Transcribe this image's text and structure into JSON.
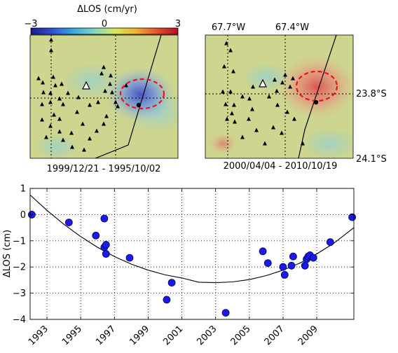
{
  "colorbar": {
    "label": "ΔLOS (cm/yr)",
    "tick_labels": [
      "−3",
      "0",
      "3"
    ],
    "colors": [
      "#1a1a8c",
      "#2f4fd6",
      "#3aa6e0",
      "#7fd6c8",
      "#d8e85a",
      "#f0b030",
      "#e8502a",
      "#b80c20"
    ]
  },
  "map_left": {
    "caption": "1999/12/21 - 1995/10/02",
    "anomaly": "uplift-blue",
    "base_color": "#cdd58e",
    "anomaly_color": "#5a6fd8"
  },
  "map_right": {
    "caption": "2000/04/04 - 2010/10/19",
    "anomaly": "subsidence-red",
    "base_color": "#cdd58e",
    "anomaly_color": "#e06060",
    "lon_labels": [
      "67.7°W",
      "67.4°W"
    ],
    "lat_labels": [
      "23.8°S",
      "24.1°S"
    ]
  },
  "chart_data": {
    "type": "scatter",
    "ylabel": "ΔLOS (cm)",
    "xlabel": "",
    "xlim": [
      1992.0,
      2011.2
    ],
    "ylim": [
      -4,
      1
    ],
    "xticks": [
      1993,
      1995,
      1997,
      1999,
      2001,
      2003,
      2005,
      2007,
      2009
    ],
    "yticks": [
      1,
      0,
      -1,
      -2,
      -3,
      -4
    ],
    "grid": true,
    "series": [
      {
        "kind": "points",
        "color": "#1a1aee",
        "points": [
          [
            1992.1,
            0.0
          ],
          [
            1994.3,
            -0.3
          ],
          [
            1995.9,
            -0.8
          ],
          [
            1996.4,
            -0.15
          ],
          [
            1996.4,
            -1.25
          ],
          [
            1996.5,
            -1.15
          ],
          [
            1996.5,
            -1.5
          ],
          [
            1997.9,
            -1.65
          ],
          [
            2000.1,
            -3.25
          ],
          [
            2000.4,
            -2.6
          ],
          [
            2003.6,
            -3.75
          ],
          [
            2005.8,
            -1.4
          ],
          [
            2006.1,
            -1.85
          ],
          [
            2007.0,
            -2.0
          ],
          [
            2007.1,
            -2.3
          ],
          [
            2007.5,
            -1.95
          ],
          [
            2007.6,
            -1.6
          ],
          [
            2008.3,
            -1.95
          ],
          [
            2008.4,
            -1.7
          ],
          [
            2008.5,
            -1.6
          ],
          [
            2008.6,
            -1.55
          ],
          [
            2008.8,
            -1.65
          ],
          [
            2009.8,
            -1.05
          ],
          [
            2011.1,
            -0.1
          ]
        ]
      },
      {
        "kind": "fit",
        "color": "#000000",
        "curve": [
          [
            1992.0,
            0.75
          ],
          [
            1993,
            0.16
          ],
          [
            1994,
            -0.37
          ],
          [
            1995,
            -0.84
          ],
          [
            1996,
            -1.25
          ],
          [
            1997,
            -1.6
          ],
          [
            1998,
            -1.89
          ],
          [
            1999,
            -2.12
          ],
          [
            2000,
            -2.3
          ],
          [
            2001,
            -2.42
          ],
          [
            2002,
            -2.58
          ],
          [
            2003,
            -2.6
          ],
          [
            2004,
            -2.57
          ],
          [
            2005,
            -2.48
          ],
          [
            2006,
            -2.33
          ],
          [
            2007,
            -2.12
          ],
          [
            2008,
            -1.85
          ],
          [
            2009,
            -1.5
          ],
          [
            2010,
            -1.1
          ],
          [
            2011.2,
            -0.5
          ]
        ]
      }
    ]
  }
}
